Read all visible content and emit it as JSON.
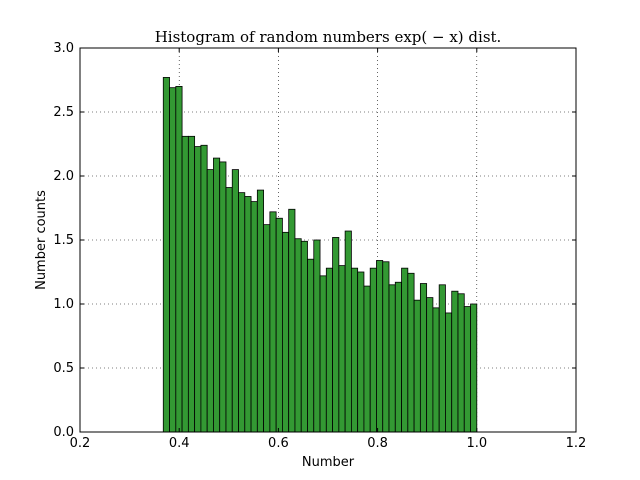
{
  "chart_data": {
    "type": "bar",
    "title": "Histogram of random numbers exp( − x) dist.",
    "xlabel": "Number",
    "ylabel": "Number counts",
    "xlim": [
      0.2,
      1.2
    ],
    "ylim": [
      0.0,
      3.0
    ],
    "xticks": [
      "0.2",
      "0.4",
      "0.6",
      "0.8",
      "1.0",
      "1.2"
    ],
    "yticks": [
      "0.0",
      "0.5",
      "1.0",
      "1.5",
      "2.0",
      "2.5",
      "3.0"
    ],
    "grid": true,
    "bar_color": "#339933",
    "bin_range": [
      0.3679,
      1.0
    ],
    "values": [
      2.77,
      2.69,
      2.7,
      2.31,
      2.31,
      2.23,
      2.24,
      2.05,
      2.14,
      2.11,
      1.91,
      2.05,
      1.87,
      1.84,
      1.8,
      1.89,
      1.62,
      1.72,
      1.67,
      1.56,
      1.74,
      1.51,
      1.49,
      1.35,
      1.5,
      1.22,
      1.28,
      1.52,
      1.3,
      1.57,
      1.28,
      1.25,
      1.14,
      1.28,
      1.34,
      1.33,
      1.15,
      1.17,
      1.28,
      1.24,
      1.03,
      1.16,
      1.05,
      0.97,
      1.15,
      0.93,
      1.1,
      1.08,
      0.98,
      1.0
    ]
  }
}
